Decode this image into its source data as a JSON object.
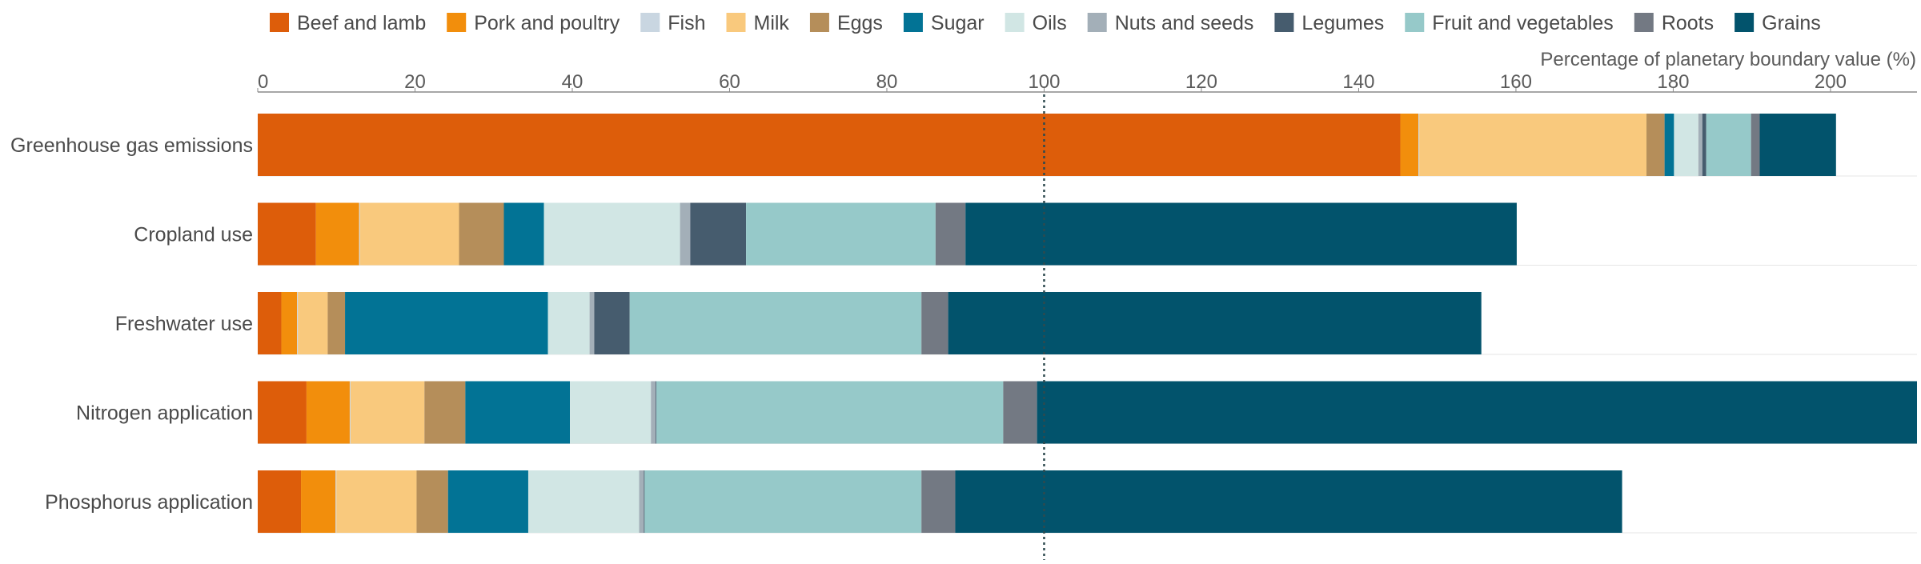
{
  "chart_data": {
    "type": "bar",
    "orientation": "horizontal",
    "stacked": true,
    "xlabel": "Percentage of planetary boundary value (%)",
    "ylabel": "",
    "xlim": [
      0,
      211
    ],
    "xticks": [
      0,
      20,
      40,
      60,
      80,
      100,
      120,
      140,
      160,
      180,
      200
    ],
    "reference_line": {
      "value": 100,
      "style": "dotted"
    },
    "legend_position": "top",
    "grid": true,
    "categories": [
      "Greenhouse gas emissions",
      "Cropland use",
      "Freshwater use",
      "Nitrogen application",
      "Phosphorus application"
    ],
    "series": [
      {
        "name": "Beef and lamb",
        "color": "#dd5d0a",
        "values": [
          145.3,
          7.4,
          3.0,
          6.2,
          5.5
        ]
      },
      {
        "name": "Pork and poultry",
        "color": "#f28e0c",
        "values": [
          2.3,
          5.5,
          2.0,
          5.5,
          4.4
        ]
      },
      {
        "name": "Fish",
        "color": "#c9d6e1",
        "values": [
          0.1,
          0.1,
          0.1,
          0.1,
          0.1
        ]
      },
      {
        "name": "Milk",
        "color": "#f9c97d",
        "values": [
          28.9,
          12.6,
          3.8,
          9.4,
          10.2
        ]
      },
      {
        "name": "Eggs",
        "color": "#b58e5a",
        "values": [
          2.3,
          5.7,
          2.2,
          5.2,
          4.0
        ]
      },
      {
        "name": "Sugar",
        "color": "#027395",
        "values": [
          1.2,
          5.1,
          25.8,
          13.3,
          10.2
        ]
      },
      {
        "name": "Oils",
        "color": "#d1e6e4",
        "values": [
          3.1,
          17.3,
          5.3,
          10.3,
          14.1
        ]
      },
      {
        "name": "Nuts and seeds",
        "color": "#a3afb8",
        "values": [
          0.5,
          1.3,
          0.6,
          0.6,
          0.6
        ]
      },
      {
        "name": "Legumes",
        "color": "#465c6e",
        "values": [
          0.5,
          7.1,
          4.5,
          0.1,
          0.1
        ]
      },
      {
        "name": "Fruit and vegetables",
        "color": "#96c9c9",
        "values": [
          5.7,
          24.1,
          37.1,
          44.1,
          35.2
        ]
      },
      {
        "name": "Roots",
        "color": "#737983",
        "values": [
          1.1,
          3.8,
          3.4,
          4.3,
          4.3
        ]
      },
      {
        "name": "Grains",
        "color": "#02536c",
        "values": [
          9.7,
          70.1,
          67.8,
          112.4,
          84.8
        ]
      }
    ]
  }
}
